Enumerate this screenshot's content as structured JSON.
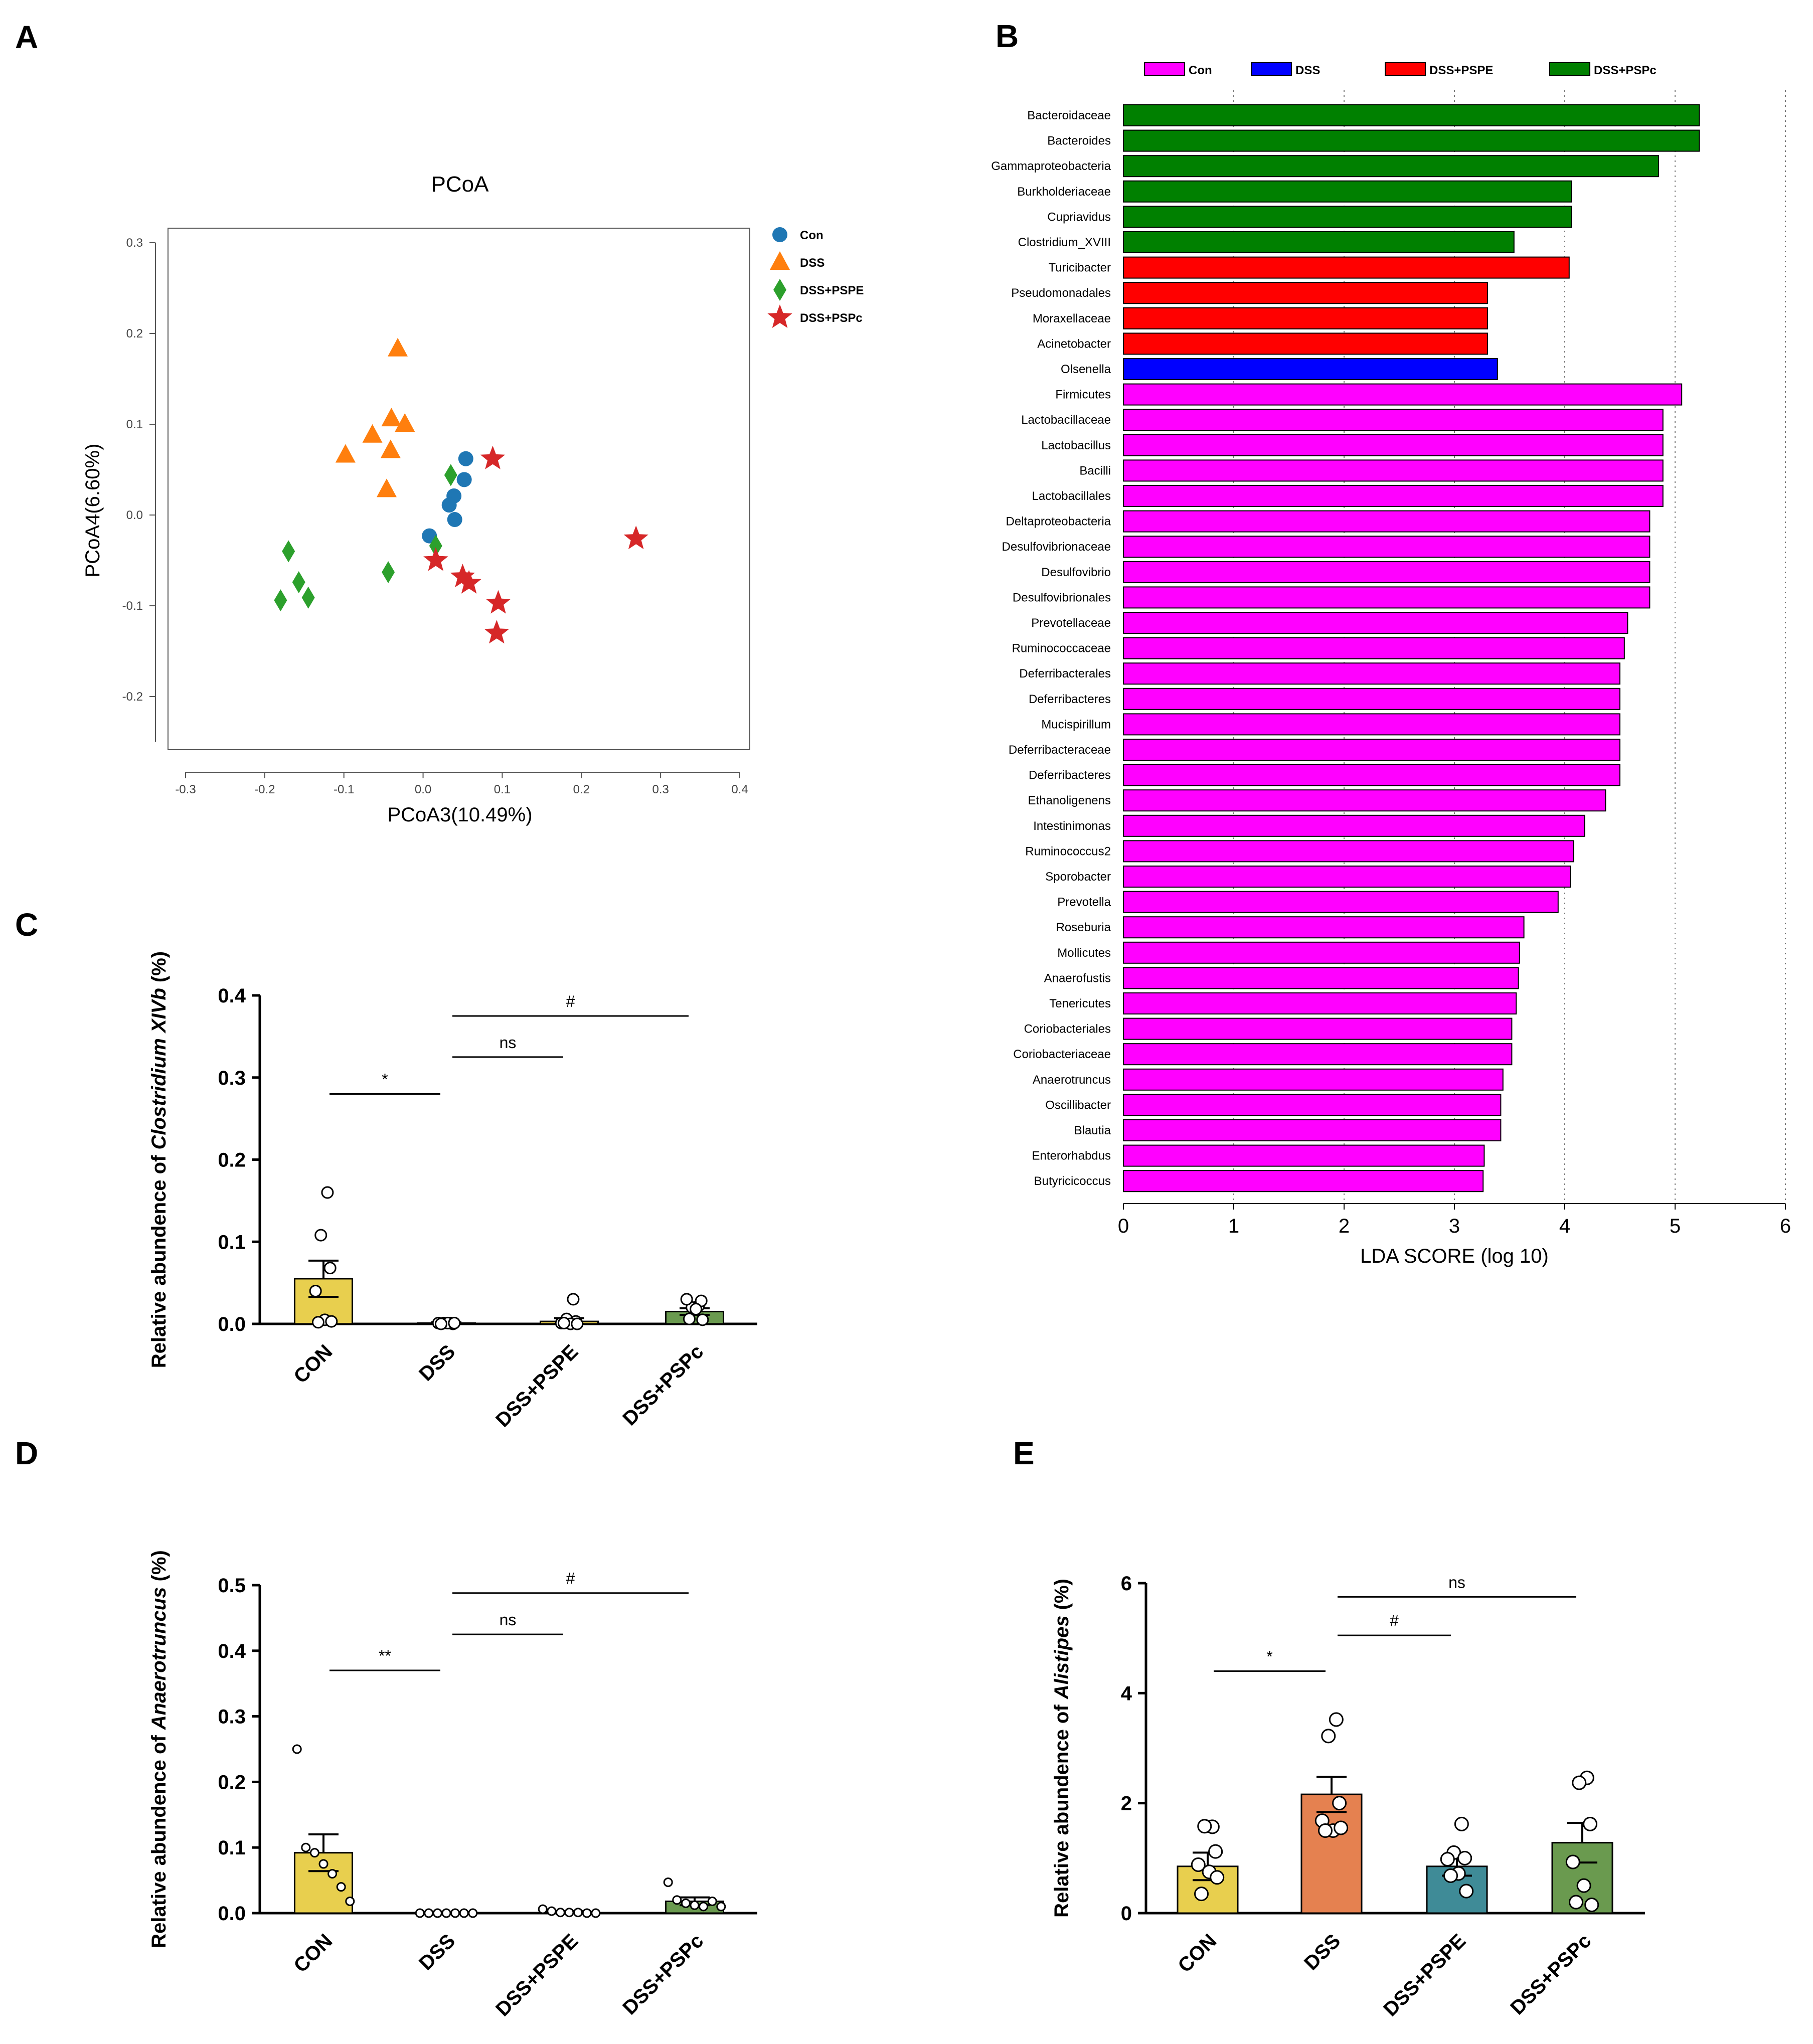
{
  "panels": {
    "A": {
      "label": "A",
      "chart_data": {
        "type": "scatter",
        "title": "PCoA",
        "xlabel": "PCoA3(10.49%)",
        "ylabel": "PCoA4(6.60%)",
        "xlim": [
          -0.3,
          0.4
        ],
        "ylim": [
          -0.25,
          0.32
        ],
        "xticks": [
          "-0.3",
          "-0.2",
          "-0.1",
          "0.0",
          "0.1",
          "0.2",
          "0.3",
          "0.4"
        ],
        "yticks": [
          "-0.2",
          "-0.1",
          "0.0",
          "0.1",
          "0.2",
          "0.3"
        ],
        "legend_position": "right",
        "series": [
          {
            "name": "Con",
            "marker": "circle",
            "color": "#1f77b4",
            "points": [
              [
                0.054,
                0.062
              ],
              [
                0.052,
                0.039
              ],
              [
                0.039,
                0.021
              ],
              [
                0.033,
                0.011
              ],
              [
                0.04,
                -0.005
              ],
              [
                0.008,
                -0.023
              ]
            ]
          },
          {
            "name": "DSS",
            "marker": "triangle",
            "color": "#ff7f0e",
            "points": [
              [
                -0.032,
                0.183
              ],
              [
                -0.04,
                0.106
              ],
              [
                -0.023,
                0.1
              ],
              [
                -0.064,
                0.088
              ],
              [
                -0.041,
                0.071
              ],
              [
                -0.098,
                0.066
              ],
              [
                -0.046,
                0.028
              ]
            ]
          },
          {
            "name": "DSS+PSPE",
            "marker": "diamond",
            "color": "#2ca02c",
            "points": [
              [
                0.035,
                0.044
              ],
              [
                0.016,
                -0.034
              ],
              [
                -0.17,
                -0.04
              ],
              [
                -0.157,
                -0.074
              ],
              [
                -0.044,
                -0.063
              ],
              [
                -0.145,
                -0.091
              ],
              [
                -0.18,
                -0.094
              ]
            ]
          },
          {
            "name": "DSS+PSPc",
            "marker": "star",
            "color": "#d62728",
            "points": [
              [
                0.088,
                0.062
              ],
              [
                0.269,
                -0.026
              ],
              [
                0.016,
                -0.05
              ],
              [
                0.05,
                -0.068
              ],
              [
                0.058,
                -0.075
              ],
              [
                0.095,
                -0.097
              ],
              [
                0.093,
                -0.13
              ]
            ]
          }
        ]
      }
    },
    "B": {
      "label": "B",
      "chart_data": {
        "type": "bar",
        "orientation": "horizontal",
        "xlabel": "LDA SCORE (log 10)",
        "xlim": [
          0,
          6
        ],
        "xticks": [
          "0",
          "1",
          "2",
          "3",
          "4",
          "5",
          "6"
        ],
        "legend": [
          {
            "name": "Con",
            "color": "#ff00ff"
          },
          {
            "name": "DSS",
            "color": "#0000ff"
          },
          {
            "name": "DSS+PSPE",
            "color": "#ff0000"
          },
          {
            "name": "DSS+PSPc",
            "color": "#008000"
          }
        ],
        "legend_position": "top",
        "bars": [
          {
            "label": "Bacteroidaceae",
            "value": 5.22,
            "group": "DSS+PSPc"
          },
          {
            "label": "Bacteroides",
            "value": 5.22,
            "group": "DSS+PSPc"
          },
          {
            "label": "Gammaproteobacteria",
            "value": 4.85,
            "group": "DSS+PSPc"
          },
          {
            "label": "Burkholderiaceae",
            "value": 4.06,
            "group": "DSS+PSPc"
          },
          {
            "label": "Cupriavidus",
            "value": 4.06,
            "group": "DSS+PSPc"
          },
          {
            "label": "Clostridium_XVIII",
            "value": 3.54,
            "group": "DSS+PSPc"
          },
          {
            "label": "Turicibacter",
            "value": 4.04,
            "group": "DSS+PSPE"
          },
          {
            "label": "Pseudomonadales",
            "value": 3.3,
            "group": "DSS+PSPE"
          },
          {
            "label": "Moraxellaceae",
            "value": 3.3,
            "group": "DSS+PSPE"
          },
          {
            "label": "Acinetobacter",
            "value": 3.3,
            "group": "DSS+PSPE"
          },
          {
            "label": "Olsenella",
            "value": 3.39,
            "group": "DSS"
          },
          {
            "label": "Firmicutes",
            "value": 5.06,
            "group": "Con"
          },
          {
            "label": "Lactobacillaceae",
            "value": 4.89,
            "group": "Con"
          },
          {
            "label": "Lactobacillus",
            "value": 4.89,
            "group": "Con"
          },
          {
            "label": "Bacilli",
            "value": 4.89,
            "group": "Con"
          },
          {
            "label": "Lactobacillales",
            "value": 4.89,
            "group": "Con"
          },
          {
            "label": "Deltaproteobacteria",
            "value": 4.77,
            "group": "Con"
          },
          {
            "label": "Desulfovibrionaceae",
            "value": 4.77,
            "group": "Con"
          },
          {
            "label": "Desulfovibrio",
            "value": 4.77,
            "group": "Con"
          },
          {
            "label": "Desulfovibrionales",
            "value": 4.77,
            "group": "Con"
          },
          {
            "label": "Prevotellaceae",
            "value": 4.57,
            "group": "Con"
          },
          {
            "label": "Ruminococcaceae",
            "value": 4.54,
            "group": "Con"
          },
          {
            "label": "Deferribacterales",
            "value": 4.5,
            "group": "Con"
          },
          {
            "label": "Deferribacteres",
            "value": 4.5,
            "group": "Con"
          },
          {
            "label": "Mucispirillum",
            "value": 4.5,
            "group": "Con"
          },
          {
            "label": "Deferribacteraceae",
            "value": 4.5,
            "group": "Con"
          },
          {
            "label": "Deferribacteres",
            "value": 4.5,
            "group": "Con"
          },
          {
            "label": "Ethanoligenens",
            "value": 4.37,
            "group": "Con"
          },
          {
            "label": "Intestinimonas",
            "value": 4.18,
            "group": "Con"
          },
          {
            "label": "Ruminococcus2",
            "value": 4.08,
            "group": "Con"
          },
          {
            "label": "Sporobacter",
            "value": 4.05,
            "group": "Con"
          },
          {
            "label": "Prevotella",
            "value": 3.94,
            "group": "Con"
          },
          {
            "label": "Roseburia",
            "value": 3.63,
            "group": "Con"
          },
          {
            "label": "Mollicutes",
            "value": 3.59,
            "group": "Con"
          },
          {
            "label": "Anaerofustis",
            "value": 3.58,
            "group": "Con"
          },
          {
            "label": "Tenericutes",
            "value": 3.56,
            "group": "Con"
          },
          {
            "label": "Coriobacteriales",
            "value": 3.52,
            "group": "Con"
          },
          {
            "label": "Coriobacteriaceae",
            "value": 3.52,
            "group": "Con"
          },
          {
            "label": "Anaerotruncus",
            "value": 3.44,
            "group": "Con"
          },
          {
            "label": "Oscillibacter",
            "value": 3.42,
            "group": "Con"
          },
          {
            "label": "Blautia",
            "value": 3.42,
            "group": "Con"
          },
          {
            "label": "Enterorhabdus",
            "value": 3.27,
            "group": "Con"
          },
          {
            "label": "Butyricicoccus",
            "value": 3.26,
            "group": "Con"
          }
        ]
      }
    },
    "C": {
      "label": "C",
      "chart_data": {
        "type": "bar",
        "ylabel_pre": "Relative abundence of ",
        "ylabel_italic": "Clostridium XIVb",
        "ylabel_post": " (%)",
        "ylim": [
          0,
          0.4
        ],
        "yticks": [
          "0.0",
          "0.1",
          "0.2",
          "0.3",
          "0.4"
        ],
        "categories": [
          "CON",
          "DSS",
          "DSS+PSPE",
          "DSS+PSPc"
        ],
        "colors": [
          "#e8cf4e",
          "#e8cf4e",
          "#e8cf4e",
          "#6a9a4f"
        ],
        "values": [
          0.055,
          0.001,
          0.003,
          0.015
        ],
        "errors": [
          0.022,
          0.001,
          0.004,
          0.004
        ],
        "points": [
          [
            0.16,
            0.108,
            0.068,
            0.04,
            0.005,
            0.002,
            0.003
          ],
          [
            0.001,
            0.001,
            0.0,
            0.001,
            0.001,
            0.0,
            0.001
          ],
          [
            0.03,
            0.006,
            0.003,
            0.001,
            0.0,
            0.001,
            0.0
          ],
          [
            0.022,
            0.02,
            0.028,
            0.03,
            0.018,
            0.006,
            0.005
          ]
        ],
        "comparisons": [
          {
            "from": 0,
            "to": 1,
            "y": 0.28,
            "label": "*"
          },
          {
            "from": 1,
            "to": 2,
            "y": 0.325,
            "label": "ns"
          },
          {
            "from": 1,
            "to": 3,
            "y": 0.375,
            "label": "#"
          }
        ]
      }
    },
    "D": {
      "label": "D",
      "chart_data": {
        "type": "bar",
        "ylabel_pre": "Relative abundence of ",
        "ylabel_italic": "Anaerotruncus",
        "ylabel_post": " (%)",
        "ylim": [
          0,
          0.5
        ],
        "yticks": [
          "0.0",
          "0.1",
          "0.2",
          "0.3",
          "0.4",
          "0.5"
        ],
        "categories": [
          "CON",
          "DSS",
          "DSS+PSPE",
          "DSS+PSPc"
        ],
        "colors": [
          "#e8cf4e",
          "#e8cf4e",
          "#e8cf4e",
          "#6a9a4f"
        ],
        "values": [
          0.092,
          0.0,
          0.002,
          0.018
        ],
        "errors": [
          0.028,
          0.0,
          0.001,
          0.006
        ],
        "points": [
          [
            0.25,
            0.1,
            0.092,
            0.075,
            0.06,
            0.04,
            0.018
          ],
          [
            0.0,
            0.0,
            0.0,
            0.0,
            0.0,
            0.0,
            0.0
          ],
          [
            0.006,
            0.003,
            0.001,
            0.001,
            0.001,
            0.0,
            0.0
          ],
          [
            0.047,
            0.02,
            0.015,
            0.012,
            0.01,
            0.018,
            0.01
          ]
        ],
        "comparisons": [
          {
            "from": 0,
            "to": 1,
            "y": 0.37,
            "label": "**"
          },
          {
            "from": 1,
            "to": 2,
            "y": 0.425,
            "label": "ns"
          },
          {
            "from": 1,
            "to": 3,
            "y": 0.488,
            "label": "#"
          }
        ]
      }
    },
    "E": {
      "label": "E",
      "chart_data": {
        "type": "bar",
        "ylabel_pre": "Relative abundence of ",
        "ylabel_italic": "Alistipes",
        "ylabel_post": " (%)",
        "ylim": [
          0,
          6
        ],
        "yticks": [
          "0",
          "2",
          "4",
          "6"
        ],
        "categories": [
          "CON",
          "DSS",
          "DSS+PSPE",
          "DSS+PSPc"
        ],
        "colors": [
          "#e8cf4e",
          "#e58150",
          "#3f8b97",
          "#6a9a4f"
        ],
        "values": [
          0.85,
          2.16,
          0.85,
          1.28
        ],
        "errors": [
          0.25,
          0.32,
          0.17,
          0.36
        ],
        "points": [
          [
            1.57,
            1.58,
            1.12,
            0.88,
            0.75,
            0.35,
            0.65
          ],
          [
            3.52,
            3.22,
            2.0,
            1.68,
            1.5,
            1.5,
            1.55
          ],
          [
            1.62,
            1.1,
            1.0,
            0.98,
            0.72,
            0.68,
            0.4
          ],
          [
            2.46,
            2.37,
            1.62,
            0.93,
            0.5,
            0.2,
            0.15
          ]
        ],
        "comparisons": [
          {
            "from": 0,
            "to": 1,
            "y": 4.4,
            "label": "*"
          },
          {
            "from": 1,
            "to": 2,
            "y": 5.05,
            "label": "#"
          },
          {
            "from": 1,
            "to": 3,
            "y": 5.75,
            "label": "ns"
          }
        ]
      }
    }
  }
}
